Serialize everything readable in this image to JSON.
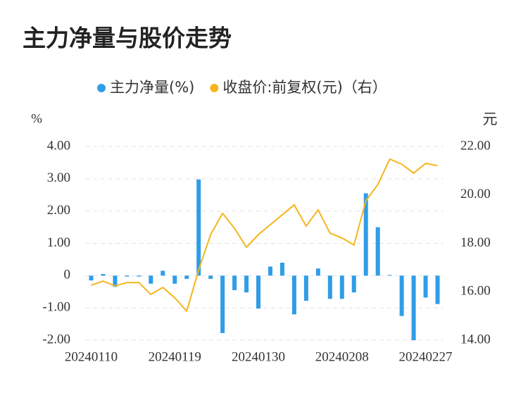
{
  "chart_data": {
    "type": "bar-line",
    "title": "主力净量与股价走势",
    "y_label": "%",
    "y2_label": "元",
    "categories": [
      "20240110",
      null,
      null,
      null,
      null,
      null,
      null,
      "20240119",
      null,
      null,
      null,
      null,
      null,
      null,
      "20240130",
      null,
      null,
      null,
      null,
      null,
      null,
      "20240208",
      null,
      null,
      null,
      null,
      null,
      null,
      "20240227",
      null
    ],
    "series": [
      {
        "name": "主力净量(%)",
        "type": "bar",
        "color": "#2f9de8",
        "values": [
          -0.15,
          0.05,
          -0.35,
          -0.03,
          -0.03,
          -0.25,
          0.15,
          -0.25,
          -0.1,
          2.98,
          -0.1,
          -1.78,
          -0.45,
          -0.52,
          -1.02,
          0.28,
          0.4,
          -1.2,
          -0.78,
          0.22,
          -0.72,
          -0.72,
          -0.52,
          2.55,
          1.5,
          0.02,
          -1.25,
          -2.0,
          -0.68,
          -0.88
        ]
      },
      {
        "name": "收盘价:前复权(元)（右）",
        "type": "line",
        "axis": "y2",
        "color": "#f5b51c",
        "values": [
          16.27,
          16.44,
          16.24,
          16.38,
          16.38,
          15.89,
          16.18,
          15.75,
          15.2,
          16.9,
          18.36,
          19.24,
          18.62,
          17.84,
          18.36,
          18.77,
          19.18,
          19.59,
          18.71,
          19.38,
          18.42,
          18.22,
          17.93,
          19.76,
          20.43,
          21.48,
          21.27,
          20.9,
          21.3,
          21.21
        ]
      }
    ],
    "ylim": [
      -2,
      4
    ],
    "yticks": [
      {
        "value": -2,
        "label": "-2.00"
      },
      {
        "value": -1,
        "label": "-1.00"
      },
      0,
      {
        "value": 1,
        "label": "1.00"
      },
      {
        "value": 2,
        "label": "2.00"
      },
      {
        "value": 3,
        "label": "3.00"
      },
      {
        "value": 4,
        "label": "4.00"
      }
    ],
    "y2lim": [
      14,
      22
    ],
    "y2ticks": [
      {
        "value": 14,
        "label": "14.00"
      },
      {
        "value": 16,
        "label": "16.00"
      },
      {
        "value": 18,
        "label": "18.00"
      },
      {
        "value": 20,
        "label": "20.00"
      },
      {
        "value": 22,
        "label": "22.00"
      }
    ],
    "grid": true
  }
}
